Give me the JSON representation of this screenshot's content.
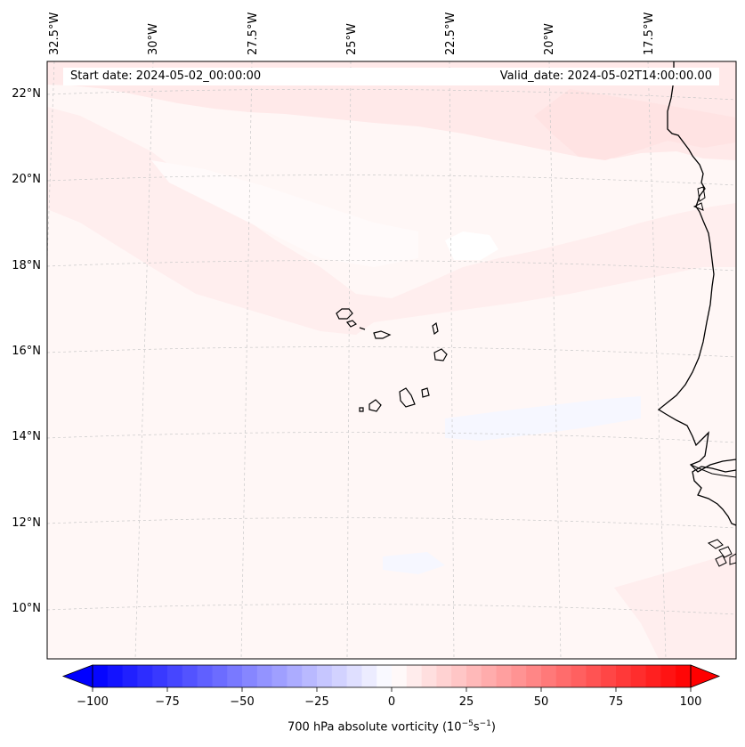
{
  "map": {
    "start_date": "Start date: 2024-05-02_00:00:00",
    "valid_date": "Valid_date: 2024-05-02T14:00:00.00",
    "longitude_labels": [
      "32.5°W",
      "30°W",
      "27.5°W",
      "25°W",
      "22.5°W",
      "20°W",
      "17.5°W"
    ],
    "latitude_labels": [
      "22°N",
      "20°N",
      "18°N",
      "16°N",
      "14°N",
      "12°N",
      "10°N"
    ],
    "field": "700 hPa absolute vorticity",
    "places": [
      "Cape Verde Islands",
      "West African coast (Mauritania, Senegal, Gambia, Guinea-Bissau)"
    ]
  },
  "colorbar": {
    "min": -100,
    "max": 100,
    "ticks": [
      -100,
      -75,
      -50,
      -25,
      0,
      25,
      50,
      75,
      100
    ],
    "tick_labels": [
      "−100",
      "−75",
      "−50",
      "−25",
      "0",
      "25",
      "50",
      "75",
      "100"
    ],
    "caption_prefix": "700 hPa absolute vorticity (10",
    "caption_exp1": "−5",
    "caption_mid": "s",
    "caption_exp2": "−1",
    "caption_suffix": ")",
    "color_low": "#0000ff",
    "color_mid": "#ffffff",
    "color_high": "#ff0000"
  },
  "colors": {
    "background_field": "#fff7f6",
    "positive_band": "#ffe8e8",
    "coastline": "#000000",
    "gridline": "#c8c8c8"
  }
}
